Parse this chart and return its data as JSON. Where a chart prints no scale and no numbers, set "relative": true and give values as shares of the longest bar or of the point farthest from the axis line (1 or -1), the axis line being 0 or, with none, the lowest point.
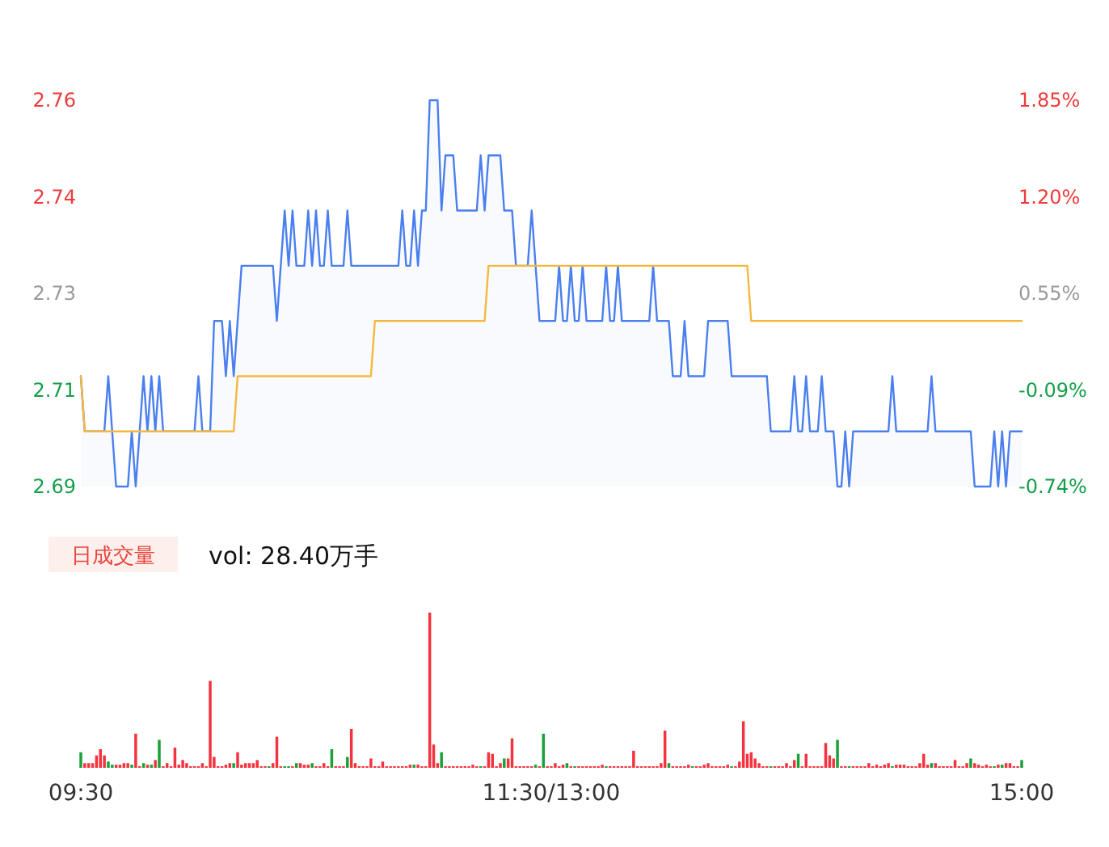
{
  "chart_data": [
    {
      "type": "line",
      "ylim": [
        2.69,
        2.76
      ],
      "yticks": [
        {
          "value": 2.69,
          "label": "2.69"
        },
        {
          "value": 2.7075,
          "label": "2.71"
        },
        {
          "value": 2.725,
          "label": "2.73"
        },
        {
          "value": 2.7425,
          "label": "2.74"
        },
        {
          "value": 2.76,
          "label": "2.76"
        }
      ],
      "y2lim": [
        -0.74,
        1.85
      ],
      "y2ticks": [
        {
          "value": -0.74,
          "label": "-0.74%"
        },
        {
          "value": -0.0925,
          "label": "-0.09%"
        },
        {
          "value": 0.555,
          "label": "0.55%"
        },
        {
          "value": 1.2025,
          "label": "1.20%"
        },
        {
          "value": 1.85,
          "label": "1.85%"
        }
      ],
      "categories": [
        null,
        null,
        null,
        null,
        null,
        null,
        null,
        null,
        null,
        null,
        null,
        null,
        null,
        null,
        null,
        null,
        null,
        null,
        null,
        null,
        null,
        null,
        null,
        null,
        null,
        null,
        null,
        null,
        null,
        null,
        null,
        null,
        null,
        null,
        null,
        null,
        null,
        null,
        null,
        null,
        null,
        null,
        null,
        null,
        null,
        null,
        null,
        null,
        null,
        null,
        null,
        null,
        null,
        null,
        null,
        null,
        null,
        null,
        null,
        null,
        null,
        null,
        null,
        null,
        null,
        null,
        null,
        null,
        null,
        null,
        null,
        null,
        null,
        null,
        null,
        null,
        null,
        null,
        null,
        null,
        null,
        null,
        null,
        null,
        null,
        null,
        null,
        null,
        null,
        null,
        null,
        null,
        null,
        null,
        null,
        null,
        null,
        null,
        null,
        null,
        null,
        null,
        null,
        null,
        null,
        null,
        null,
        null,
        null,
        null,
        null,
        null,
        null,
        null,
        null,
        null,
        null,
        null,
        null,
        null,
        null,
        null,
        null,
        null,
        null,
        null,
        null,
        null,
        null,
        null,
        null,
        null,
        null,
        null,
        null,
        null,
        null,
        null,
        null,
        null,
        null,
        null,
        null,
        null,
        null,
        null,
        null,
        null,
        null,
        null,
        null,
        null,
        null,
        null,
        null,
        null,
        null,
        null,
        null,
        null,
        null,
        null,
        null,
        null,
        null,
        null,
        null,
        null,
        null,
        null,
        null,
        null,
        null,
        null,
        null,
        null,
        null,
        null,
        null,
        null,
        null,
        null,
        null,
        null,
        null,
        null,
        null,
        null,
        null,
        null,
        null,
        null,
        null,
        null,
        null,
        null,
        null,
        null,
        null,
        null,
        null,
        null,
        null,
        null,
        null,
        null,
        null,
        null,
        null,
        null,
        null,
        null,
        null,
        null,
        null,
        null,
        null,
        null,
        null,
        null,
        null,
        null,
        null,
        null,
        null,
        null,
        null,
        null,
        null,
        null,
        null,
        null,
        null,
        null,
        null,
        null,
        null,
        null,
        null,
        null,
        null
      ],
      "tick_labels": "y",
      "marker": "none",
      "line_style": "solid",
      "series": [
        {
          "type": "area",
          "color": "#4a7ff0",
          "values": [
            2.71,
            2.7,
            2.7,
            2.7,
            2.7,
            2.7,
            2.7,
            2.71,
            2.7,
            2.69,
            2.69,
            2.69,
            2.69,
            2.7,
            2.69,
            2.7,
            2.71,
            2.7,
            2.71,
            2.7,
            2.71,
            2.7,
            2.7,
            2.7,
            2.7,
            2.7,
            2.7,
            2.7,
            2.7,
            2.7,
            2.71,
            2.7,
            2.7,
            2.7,
            2.72,
            2.72,
            2.72,
            2.71,
            2.72,
            2.71,
            2.72,
            2.73,
            2.73,
            2.73,
            2.73,
            2.73,
            2.73,
            2.73,
            2.73,
            2.73,
            2.72,
            2.73,
            2.74,
            2.73,
            2.74,
            2.73,
            2.73,
            2.73,
            2.74,
            2.73,
            2.74,
            2.73,
            2.73,
            2.74,
            2.73,
            2.73,
            2.73,
            2.73,
            2.74,
            2.73,
            2.73,
            2.73,
            2.73,
            2.73,
            2.73,
            2.73,
            2.73,
            2.73,
            2.73,
            2.73,
            2.73,
            2.73,
            2.74,
            2.73,
            2.73,
            2.74,
            2.73,
            2.74,
            2.74,
            2.76,
            2.76,
            2.76,
            2.74,
            2.75,
            2.75,
            2.75,
            2.74,
            2.74,
            2.74,
            2.74,
            2.74,
            2.74,
            2.75,
            2.74,
            2.75,
            2.75,
            2.75,
            2.75,
            2.74,
            2.74,
            2.74,
            2.73,
            2.73,
            2.73,
            2.73,
            2.74,
            2.73,
            2.72,
            2.72,
            2.72,
            2.72,
            2.72,
            2.73,
            2.72,
            2.72,
            2.73,
            2.72,
            2.72,
            2.73,
            2.72,
            2.72,
            2.72,
            2.72,
            2.72,
            2.73,
            2.72,
            2.72,
            2.73,
            2.72,
            2.72,
            2.72,
            2.72,
            2.72,
            2.72,
            2.72,
            2.72,
            2.73,
            2.72,
            2.72,
            2.72,
            2.72,
            2.71,
            2.71,
            2.71,
            2.72,
            2.71,
            2.71,
            2.71,
            2.71,
            2.71,
            2.72,
            2.72,
            2.72,
            2.72,
            2.72,
            2.72,
            2.71,
            2.71,
            2.71,
            2.71,
            2.71,
            2.71,
            2.71,
            2.71,
            2.71,
            2.71,
            2.7,
            2.7,
            2.7,
            2.7,
            2.7,
            2.7,
            2.71,
            2.7,
            2.7,
            2.71,
            2.7,
            2.7,
            2.7,
            2.71,
            2.7,
            2.7,
            2.7,
            2.69,
            2.69,
            2.7,
            2.69,
            2.7,
            2.7,
            2.7,
            2.7,
            2.7,
            2.7,
            2.7,
            2.7,
            2.7,
            2.7,
            2.71,
            2.7,
            2.7,
            2.7,
            2.7,
            2.7,
            2.7,
            2.7,
            2.7,
            2.7,
            2.71,
            2.7,
            2.7,
            2.7,
            2.7,
            2.7,
            2.7,
            2.7,
            2.7,
            2.7,
            2.7,
            2.69,
            2.69,
            2.69,
            2.69,
            2.69,
            2.7,
            2.69,
            2.7,
            2.69,
            2.7,
            2.7,
            2.7,
            2.7
          ]
        },
        {
          "type": "line",
          "color": "#f5b83d",
          "values": [
            2.71,
            2.7,
            2.7,
            2.7,
            2.7,
            2.7,
            2.7,
            2.7,
            2.7,
            2.7,
            2.7,
            2.7,
            2.7,
            2.7,
            2.7,
            2.7,
            2.7,
            2.7,
            2.7,
            2.7,
            2.7,
            2.7,
            2.7,
            2.7,
            2.7,
            2.7,
            2.7,
            2.7,
            2.7,
            2.7,
            2.7,
            2.7,
            2.7,
            2.7,
            2.7,
            2.7,
            2.7,
            2.7,
            2.7,
            2.7,
            2.71,
            2.71,
            2.71,
            2.71,
            2.71,
            2.71,
            2.71,
            2.71,
            2.71,
            2.71,
            2.71,
            2.71,
            2.71,
            2.71,
            2.71,
            2.71,
            2.71,
            2.71,
            2.71,
            2.71,
            2.71,
            2.71,
            2.71,
            2.71,
            2.71,
            2.71,
            2.71,
            2.71,
            2.71,
            2.71,
            2.71,
            2.71,
            2.71,
            2.71,
            2.71,
            2.72,
            2.72,
            2.72,
            2.72,
            2.72,
            2.72,
            2.72,
            2.72,
            2.72,
            2.72,
            2.72,
            2.72,
            2.72,
            2.72,
            2.72,
            2.72,
            2.72,
            2.72,
            2.72,
            2.72,
            2.72,
            2.72,
            2.72,
            2.72,
            2.72,
            2.72,
            2.72,
            2.72,
            2.72,
            2.73,
            2.73,
            2.73,
            2.73,
            2.73,
            2.73,
            2.73,
            2.73,
            2.73,
            2.73,
            2.73,
            2.73,
            2.73,
            2.73,
            2.73,
            2.73,
            2.73,
            2.73,
            2.73,
            2.73,
            2.73,
            2.73,
            2.73,
            2.73,
            2.73,
            2.73,
            2.73,
            2.73,
            2.73,
            2.73,
            2.73,
            2.73,
            2.73,
            2.73,
            2.73,
            2.73,
            2.73,
            2.73,
            2.73,
            2.73,
            2.73,
            2.73,
            2.73,
            2.73,
            2.73,
            2.73,
            2.73,
            2.73,
            2.73,
            2.73,
            2.73,
            2.73,
            2.73,
            2.73,
            2.73,
            2.73,
            2.73,
            2.73,
            2.73,
            2.73,
            2.73,
            2.73,
            2.73,
            2.73,
            2.73,
            2.73,
            2.73,
            2.72,
            2.72,
            2.72,
            2.72,
            2.72,
            2.72,
            2.72,
            2.72,
            2.72,
            2.72,
            2.72,
            2.72,
            2.72,
            2.72,
            2.72,
            2.72,
            2.72,
            2.72,
            2.72,
            2.72,
            2.72,
            2.72,
            2.72,
            2.72,
            2.72,
            2.72,
            2.72,
            2.72,
            2.72,
            2.72,
            2.72,
            2.72,
            2.72,
            2.72,
            2.72,
            2.72,
            2.72,
            2.72,
            2.72,
            2.72,
            2.72,
            2.72,
            2.72,
            2.72,
            2.72,
            2.72,
            2.72,
            2.72,
            2.72,
            2.72,
            2.72,
            2.72,
            2.72,
            2.72,
            2.72,
            2.72,
            2.72,
            2.72,
            2.72,
            2.72,
            2.72,
            2.72,
            2.72,
            2.72,
            2.72,
            2.72,
            2.72,
            2.72,
            2.72,
            2.72
          ]
        }
      ]
    },
    {
      "type": "bar",
      "relative": true,
      "title": "日成交量",
      "annotations": [
        "vol: 28.40万手"
      ],
      "categories": [
        "09:30",
        null,
        null,
        null,
        null,
        null,
        null,
        null,
        null,
        null,
        null,
        null,
        null,
        null,
        null,
        null,
        null,
        null,
        null,
        null,
        null,
        null,
        null,
        null,
        null,
        null,
        null,
        null,
        null,
        null,
        null,
        null,
        null,
        null,
        null,
        null,
        null,
        null,
        null,
        null,
        null,
        null,
        null,
        null,
        null,
        null,
        null,
        null,
        null,
        null,
        null,
        null,
        null,
        null,
        null,
        null,
        null,
        null,
        null,
        null,
        null,
        null,
        null,
        null,
        null,
        null,
        null,
        null,
        null,
        null,
        null,
        null,
        null,
        null,
        null,
        null,
        null,
        null,
        null,
        null,
        null,
        null,
        null,
        null,
        null,
        null,
        null,
        null,
        null,
        null,
        null,
        null,
        null,
        null,
        null,
        null,
        null,
        null,
        null,
        null,
        null,
        null,
        null,
        null,
        null,
        null,
        null,
        null,
        null,
        null,
        null,
        null,
        null,
        null,
        null,
        null,
        null,
        null,
        null,
        null,
        "11:30/13:00",
        null,
        null,
        null,
        null,
        null,
        null,
        null,
        null,
        null,
        null,
        null,
        null,
        null,
        null,
        null,
        null,
        null,
        null,
        null,
        null,
        null,
        null,
        null,
        null,
        null,
        null,
        null,
        null,
        null,
        null,
        null,
        null,
        null,
        null,
        null,
        null,
        null,
        null,
        null,
        null,
        null,
        null,
        null,
        null,
        null,
        null,
        null,
        null,
        null,
        null,
        null,
        null,
        null,
        null,
        null,
        null,
        null,
        null,
        null,
        null,
        null,
        null,
        null,
        null,
        null,
        null,
        null,
        null,
        null,
        null,
        null,
        null,
        null,
        null,
        null,
        null,
        null,
        null,
        null,
        null,
        null,
        null,
        null,
        null,
        null,
        null,
        null,
        null,
        null,
        null,
        null,
        null,
        null,
        null,
        null,
        null,
        null,
        null,
        null,
        null,
        null,
        null,
        null,
        null,
        null,
        null,
        null,
        null,
        null,
        null,
        null,
        null,
        null,
        null,
        null,
        null,
        null,
        null,
        null,
        "15:00"
      ],
      "values": [
        0.1,
        0.03,
        0.03,
        0.03,
        0.08,
        0.12,
        0.08,
        0.04,
        0.02,
        0.02,
        0.02,
        0.03,
        0.03,
        0.02,
        0.22,
        0.01,
        0.03,
        0.02,
        0.02,
        0.05,
        0.18,
        0.01,
        0.03,
        0.01,
        0.13,
        0.02,
        0.05,
        0.03,
        0.01,
        0.01,
        0.01,
        0.03,
        0.01,
        0.56,
        0.07,
        0.01,
        0.01,
        0.02,
        0.03,
        0.03,
        0.1,
        0.02,
        0.03,
        0.03,
        0.03,
        0.05,
        0.01,
        0.01,
        0.01,
        0.03,
        0.2,
        0.01,
        0.01,
        0.01,
        0.01,
        0.03,
        0.03,
        0.02,
        0.02,
        0.03,
        0.01,
        0.01,
        0.03,
        0.01,
        0.12,
        0.01,
        0.01,
        0.01,
        0.07,
        0.25,
        0.03,
        0.01,
        0.01,
        0.01,
        0.06,
        0.01,
        0.01,
        0.04,
        0.01,
        0.01,
        0.01,
        0.01,
        0.01,
        0.01,
        0.02,
        0.02,
        0.02,
        0.01,
        0.01,
        1,
        0.15,
        0.03,
        0.1,
        0.01,
        0.01,
        0.01,
        0.01,
        0.01,
        0.01,
        0.01,
        0.02,
        0.01,
        0.01,
        0.01,
        0.1,
        0.09,
        0.01,
        0.03,
        0.06,
        0.06,
        0.19,
        0.01,
        0.01,
        0.01,
        0.01,
        0.01,
        0.02,
        0.01,
        0.22,
        0.01,
        0.01,
        0.03,
        0.01,
        0.02,
        0.03,
        0.01,
        0.01,
        0.01,
        0.01,
        0.01,
        0.01,
        0.01,
        0.01,
        0.02,
        0.01,
        0.01,
        0.01,
        0.01,
        0.01,
        0.01,
        0.01,
        0.11,
        0.01,
        0.01,
        0.01,
        0.01,
        0.01,
        0.01,
        0.03,
        0.24,
        0.03,
        0.01,
        0.01,
        0.01,
        0.01,
        0.02,
        0.01,
        0.01,
        0.01,
        0.02,
        0.03,
        0.01,
        0.01,
        0.01,
        0.01,
        0.02,
        0.01,
        0.01,
        0.04,
        0.3,
        0.09,
        0.1,
        0.06,
        0.03,
        0.01,
        0.01,
        0.01,
        0.01,
        0.01,
        0.01,
        0.03,
        0.01,
        0.05,
        0.09,
        0.01,
        0.09,
        0.01,
        0.01,
        0.01,
        0.01,
        0.16,
        0.08,
        0.06,
        0.18,
        0.01,
        0.01,
        0.01,
        0.01,
        0.01,
        0.01,
        0.01,
        0.03,
        0.01,
        0.02,
        0.01,
        0.02,
        0.03,
        0.01,
        0.02,
        0.02,
        0.02,
        0.01,
        0.01,
        0.01,
        0.03,
        0.09,
        0.02,
        0.03,
        0.03,
        0.01,
        0.01,
        0.01,
        0.01,
        0.05,
        0.01,
        0.01,
        0.03,
        0.06,
        0.03,
        0.02,
        0.01,
        0.02,
        0.01,
        0.01,
        0.02,
        0.02,
        0.03,
        0.03,
        0.01,
        0.01,
        0.05
      ],
      "colors": [
        "#1aa13a",
        "#f5333f",
        "#f5333f",
        "#f5333f",
        "#f5333f",
        "#f5333f",
        "#f5333f",
        "#1aa13a",
        "#1aa13a",
        "#f5333f",
        "#f5333f",
        "#f5333f",
        "#f5333f",
        "#1aa13a",
        "#f5333f",
        "#f5333f",
        "#1aa13a",
        "#f5333f",
        "#1aa13a",
        "#f5333f",
        "#1aa13a",
        "#f5333f",
        "#f5333f",
        "#f5333f",
        "#f5333f",
        "#f5333f",
        "#f5333f",
        "#f5333f",
        "#f5333f",
        "#f5333f",
        "#f5333f",
        "#f5333f",
        "#f5333f",
        "#f5333f",
        "#f5333f",
        "#f5333f",
        "#f5333f",
        "#f5333f",
        "#f5333f",
        "#1aa13a",
        "#f5333f",
        "#f5333f",
        "#f5333f",
        "#f5333f",
        "#f5333f",
        "#f5333f",
        "#f5333f",
        "#f5333f",
        "#1aa13a",
        "#f5333f",
        "#f5333f",
        "#f5333f",
        "#1aa13a",
        "#1aa13a",
        "#f5333f",
        "#1aa13a",
        "#f5333f",
        "#f5333f",
        "#f5333f",
        "#1aa13a",
        "#f5333f",
        "#f5333f",
        "#f5333f",
        "#f5333f",
        "#1aa13a",
        "#f5333f",
        "#f5333f",
        "#f5333f",
        "#1aa13a",
        "#f5333f",
        "#f5333f",
        "#f5333f",
        "#f5333f",
        "#f5333f",
        "#f5333f",
        "#f5333f",
        "#f5333f",
        "#f5333f",
        "#f5333f",
        "#f5333f",
        "#f5333f",
        "#f5333f",
        "#f5333f",
        "#f5333f",
        "#f5333f",
        "#1aa13a",
        "#f5333f",
        "#f5333f",
        "#f5333f",
        "#f5333f",
        "#f5333f",
        "#f5333f",
        "#1aa13a",
        "#f5333f",
        "#f5333f",
        "#f5333f",
        "#f5333f",
        "#f5333f",
        "#f5333f",
        "#f5333f",
        "#f5333f",
        "#f5333f",
        "#1aa13a",
        "#f5333f",
        "#f5333f",
        "#f5333f",
        "#f5333f",
        "#f5333f",
        "#1aa13a",
        "#f5333f",
        "#f5333f",
        "#f5333f",
        "#f5333f",
        "#f5333f",
        "#f5333f",
        "#f5333f",
        "#1aa13a",
        "#f5333f",
        "#1aa13a",
        "#f5333f",
        "#f5333f",
        "#f5333f",
        "#f5333f",
        "#f5333f",
        "#1aa13a",
        "#f5333f",
        "#1aa13a",
        "#f5333f",
        "#f5333f",
        "#f5333f",
        "#f5333f",
        "#f5333f",
        "#f5333f",
        "#f5333f",
        "#1aa13a",
        "#f5333f",
        "#f5333f",
        "#f5333f",
        "#f5333f",
        "#f5333f",
        "#f5333f",
        "#f5333f",
        "#f5333f",
        "#f5333f",
        "#f5333f",
        "#f5333f",
        "#f5333f",
        "#f5333f",
        "#f5333f",
        "#f5333f",
        "#1aa13a",
        "#f5333f",
        "#f5333f",
        "#f5333f",
        "#f5333f",
        "#f5333f",
        "#1aa13a",
        "#f5333f",
        "#f5333f",
        "#f5333f",
        "#f5333f",
        "#f5333f",
        "#f5333f",
        "#f5333f",
        "#f5333f",
        "#f5333f",
        "#1aa13a",
        "#f5333f",
        "#f5333f",
        "#f5333f",
        "#f5333f",
        "#f5333f",
        "#f5333f",
        "#f5333f",
        "#f5333f",
        "#f5333f",
        "#1aa13a",
        "#f5333f",
        "#f5333f",
        "#f5333f",
        "#f5333f",
        "#f5333f",
        "#f5333f",
        "#1aa13a",
        "#f5333f",
        "#f5333f",
        "#f5333f",
        "#f5333f",
        "#f5333f",
        "#f5333f",
        "#f5333f",
        "#f5333f",
        "#f5333f",
        "#1aa13a",
        "#f5333f",
        "#f5333f",
        "#1aa13a",
        "#f5333f",
        "#f5333f",
        "#f5333f",
        "#f5333f",
        "#f5333f",
        "#f5333f",
        "#f5333f",
        "#f5333f",
        "#f5333f",
        "#f5333f",
        "#1aa13a",
        "#f5333f",
        "#f5333f",
        "#f5333f",
        "#f5333f",
        "#f5333f",
        "#f5333f",
        "#f5333f",
        "#f5333f",
        "#f5333f",
        "#1aa13a",
        "#f5333f",
        "#f5333f",
        "#f5333f",
        "#f5333f",
        "#f5333f",
        "#f5333f",
        "#f5333f",
        "#f5333f",
        "#f5333f",
        "#1aa13a",
        "#f5333f",
        "#f5333f",
        "#f5333f",
        "#f5333f",
        "#f5333f",
        "#1aa13a",
        "#f5333f",
        "#1aa13a",
        "#f5333f",
        "#f5333f",
        "#f5333f",
        "#f5333f",
        "#1aa13a"
      ]
    }
  ]
}
